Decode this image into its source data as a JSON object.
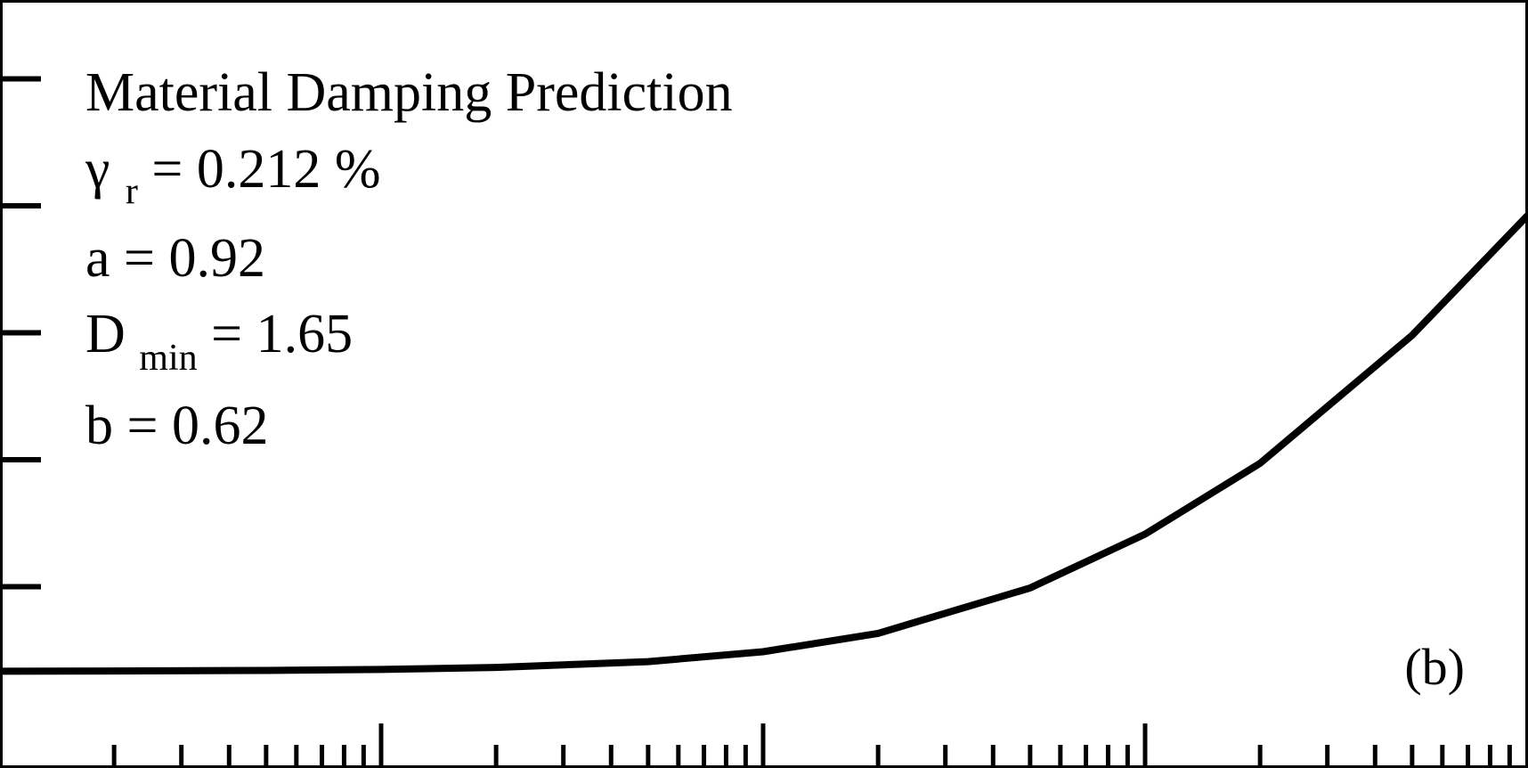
{
  "chart_data": {
    "type": "line",
    "x_scale": "log",
    "xlim": [
      0.0001,
      1.0
    ],
    "ylim": [
      0,
      30
    ],
    "grid": false,
    "legend": "none",
    "line_color": "#000000",
    "annotations": {
      "title": "Material Damping Prediction",
      "gamma_symbol": "γ",
      "gamma_sub": "r",
      "gamma_value": " = 0.212 %",
      "a_line": "a = 0.92",
      "dmin_symbol": "D",
      "dmin_sub": "min",
      "dmin_value": " = 1.65",
      "b_line": "b = 0.62",
      "panel_label": "(b)"
    },
    "series": [
      {
        "x": [
          0.0001,
          0.0002,
          0.0005,
          0.001,
          0.002,
          0.005,
          0.01,
          0.02,
          0.05,
          0.1,
          0.2,
          0.5,
          1.0
        ],
        "y": [
          1.67,
          1.68,
          1.7,
          1.74,
          1.82,
          2.05,
          2.44,
          3.16,
          4.95,
          7.07,
          9.86,
          14.9,
          19.6
        ]
      }
    ]
  }
}
